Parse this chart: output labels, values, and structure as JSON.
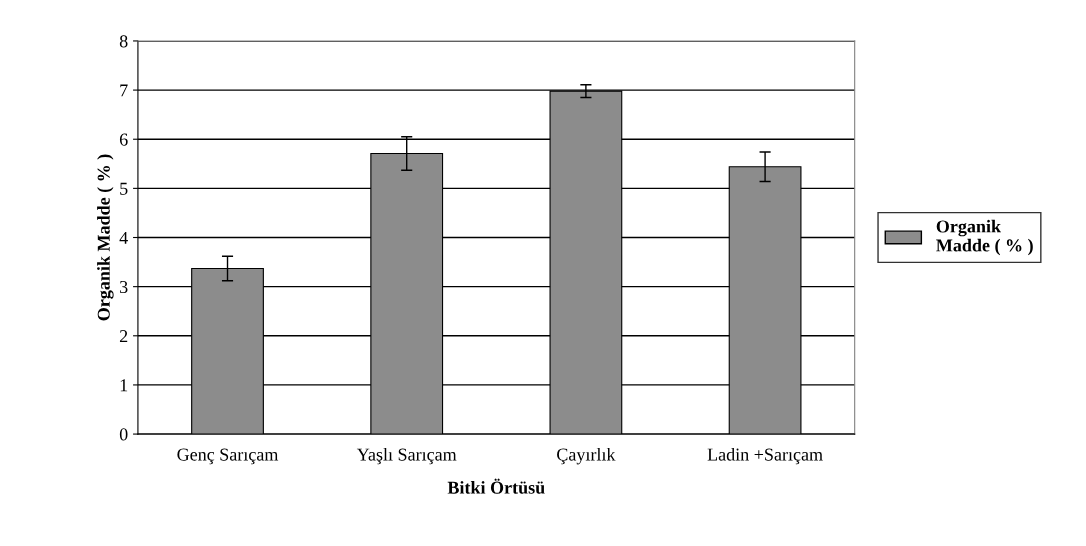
{
  "chart_data": {
    "type": "bar",
    "xlabel": "Bitki Örtüsü",
    "ylabel": "Organik Madde ( % )",
    "categories": [
      "Genç Sarıçam",
      "Yaşlı Sarıçam",
      "Çayırlık",
      "Ladin +Sarıçam"
    ],
    "series": [
      {
        "name": "Organik Madde ( % )",
        "color": "#8c8c8c",
        "values": [
          3.37,
          5.71,
          6.98,
          5.44
        ],
        "errors": [
          0.25,
          0.34,
          0.13,
          0.3
        ]
      }
    ],
    "ylim": [
      0,
      8
    ],
    "yticks": [
      0,
      1,
      2,
      3,
      4,
      5,
      6,
      7,
      8
    ],
    "grid": "y",
    "legend": "right"
  }
}
